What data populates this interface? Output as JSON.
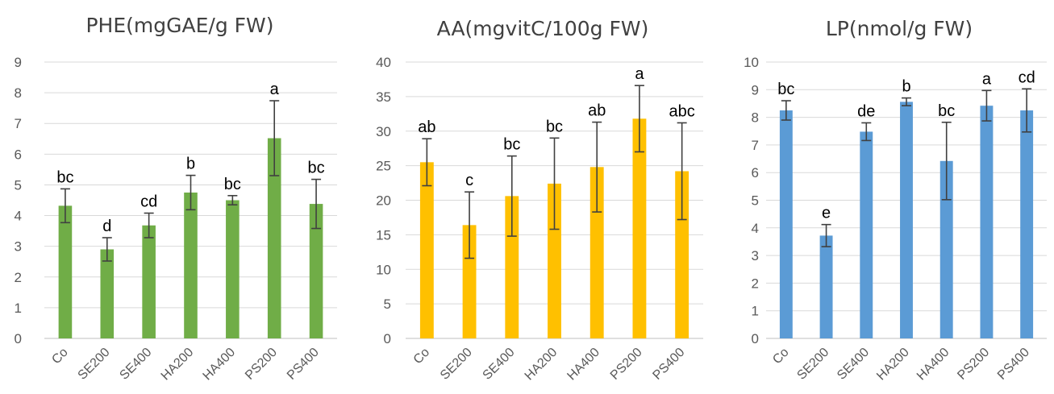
{
  "chart_data": [
    {
      "type": "bar",
      "title": "PHE(mgGAE/g FW)",
      "categories": [
        "Co",
        "SE200",
        "SE400",
        "HA200",
        "HA400",
        "PS200",
        "PS400"
      ],
      "values": [
        4.32,
        2.9,
        3.68,
        4.75,
        4.5,
        6.52,
        4.38
      ],
      "errors": [
        0.55,
        0.38,
        0.4,
        0.56,
        0.15,
        1.22,
        0.8
      ],
      "significance": [
        "bc",
        "d",
        "cd",
        "b",
        "bc",
        "a",
        "bc"
      ],
      "ylim": [
        0,
        9
      ],
      "yticks": [
        0,
        1,
        2,
        3,
        4,
        5,
        6,
        7,
        8,
        9
      ],
      "color": "#70ad47",
      "grid": true
    },
    {
      "type": "bar",
      "title": "AA(mgvitC/100g FW)",
      "categories": [
        "Co",
        "SE200",
        "SE400",
        "HA200",
        "HA400",
        "PS200",
        "PS400"
      ],
      "values": [
        25.5,
        16.4,
        20.6,
        22.4,
        24.8,
        31.8,
        24.2
      ],
      "errors": [
        3.4,
        4.8,
        5.8,
        6.6,
        6.5,
        4.8,
        7.0
      ],
      "significance": [
        "ab",
        "c",
        "bc",
        "bc",
        "ab",
        "a",
        "abc"
      ],
      "ylim": [
        0,
        40
      ],
      "yticks": [
        0,
        5,
        10,
        15,
        20,
        25,
        30,
        35,
        40
      ],
      "color": "#ffc000",
      "grid": true
    },
    {
      "type": "bar",
      "title": "LP(nmol/g FW)",
      "categories": [
        "Co",
        "SE200",
        "SE400",
        "HA200",
        "HA400",
        "PS200",
        "PS400"
      ],
      "values": [
        8.25,
        3.72,
        7.48,
        8.56,
        6.42,
        8.42,
        8.25
      ],
      "errors": [
        0.35,
        0.4,
        0.32,
        0.14,
        1.4,
        0.55,
        0.78
      ],
      "significance": [
        "bc",
        "e",
        "de",
        "b",
        "bc",
        "a",
        "cd"
      ],
      "ylim": [
        0,
        10
      ],
      "yticks": [
        0,
        1,
        2,
        3,
        4,
        5,
        6,
        7,
        8,
        9,
        10
      ],
      "color": "#5b9bd5",
      "grid": true
    }
  ]
}
